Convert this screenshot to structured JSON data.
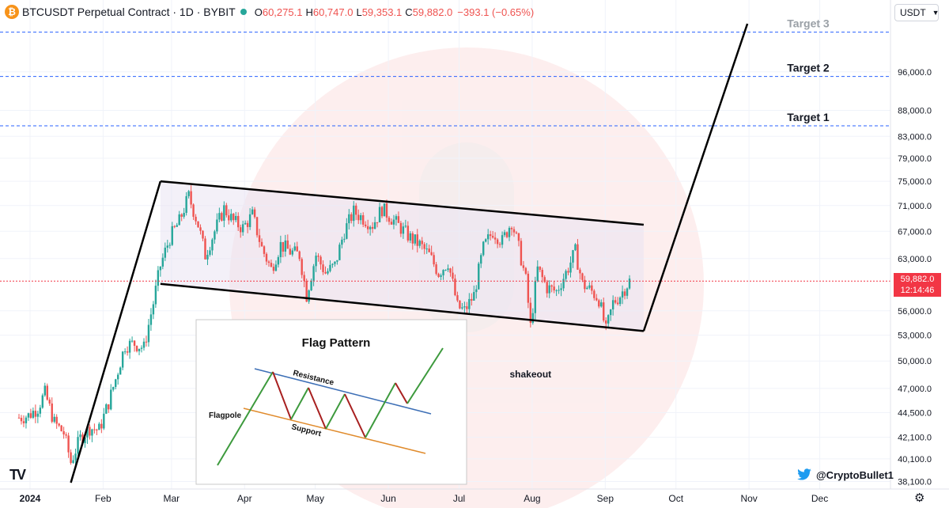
{
  "header": {
    "symbol": "BTCUSDT Perpetual Contract · 1D · BYBIT",
    "open_label": "O",
    "open": "60,275.1",
    "high_label": "H",
    "high": "60,747.0",
    "low_label": "L",
    "low": "59,353.1",
    "close_label": "C",
    "close": "59,882.0",
    "change": "−393.1 (−0.65%)"
  },
  "currency_button": "USDT",
  "logo_glyph": "₿",
  "tv_logo": "TV",
  "handle": "@CryptoBullet1",
  "current_price": {
    "value": "59,882.0",
    "countdown": "12:14:46"
  },
  "colors": {
    "up": "#26a69a",
    "down": "#ef5350",
    "target_line": "#2962ff",
    "accent": "#f23645"
  },
  "chart_data": {
    "type": "candlestick",
    "x_axis_labels": [
      "2024",
      "Feb",
      "Mar",
      "Apr",
      "May",
      "Jun",
      "Jul",
      "Aug",
      "Sep",
      "Oct",
      "Nov",
      "Dec"
    ],
    "y_axis_labels": [
      "38,100.0",
      "40,100.0",
      "42,100.0",
      "44,500.0",
      "47,000.0",
      "50,000.0",
      "53,000.0",
      "56,000.0",
      "63,000.0",
      "67,000.0",
      "71,000.0",
      "75,000.0",
      "79,000.0",
      "83,000.0",
      "88,000.0",
      "96,000.0"
    ],
    "ylim": [
      38000,
      107000
    ],
    "xlim": [
      "2024-01-01",
      "2024-12-31"
    ],
    "y_scale": "log",
    "candles_close": [
      [
        "2024-01-01",
        44000
      ],
      [
        "2024-01-05",
        44200
      ],
      [
        "2024-01-09",
        45000
      ],
      [
        "2024-01-12",
        46500
      ],
      [
        "2024-01-16",
        43500
      ],
      [
        "2024-01-20",
        42500
      ],
      [
        "2024-01-23",
        39800
      ],
      [
        "2024-01-27",
        42000
      ],
      [
        "2024-01-31",
        43000
      ],
      [
        "2024-02-04",
        42800
      ],
      [
        "2024-02-08",
        45500
      ],
      [
        "2024-02-11",
        48000
      ],
      [
        "2024-02-15",
        51800
      ],
      [
        "2024-02-19",
        52000
      ],
      [
        "2024-02-23",
        51500
      ],
      [
        "2024-02-27",
        57000
      ],
      [
        "2024-03-01",
        62000
      ],
      [
        "2024-03-05",
        66000
      ],
      [
        "2024-03-09",
        68500
      ],
      [
        "2024-03-13",
        72500
      ],
      [
        "2024-03-17",
        68000
      ],
      [
        "2024-03-20",
        63500
      ],
      [
        "2024-03-24",
        67000
      ],
      [
        "2024-03-28",
        70500
      ],
      [
        "2024-04-01",
        68500
      ],
      [
        "2024-04-05",
        67500
      ],
      [
        "2024-04-09",
        69500
      ],
      [
        "2024-04-13",
        64500
      ],
      [
        "2024-04-17",
        61500
      ],
      [
        "2024-04-21",
        65000
      ],
      [
        "2024-04-25",
        64000
      ],
      [
        "2024-04-29",
        63500
      ],
      [
        "2024-05-02",
        58000
      ],
      [
        "2024-05-06",
        63500
      ],
      [
        "2024-05-10",
        61000
      ],
      [
        "2024-05-14",
        62000
      ],
      [
        "2024-05-18",
        67000
      ],
      [
        "2024-05-22",
        70000
      ],
      [
        "2024-05-26",
        69000
      ],
      [
        "2024-05-30",
        68000
      ],
      [
        "2024-06-03",
        70500
      ],
      [
        "2024-06-07",
        69000
      ],
      [
        "2024-06-11",
        67500
      ],
      [
        "2024-06-15",
        66000
      ],
      [
        "2024-06-19",
        65000
      ],
      [
        "2024-06-23",
        63500
      ],
      [
        "2024-06-27",
        61000
      ],
      [
        "2024-07-01",
        62500
      ],
      [
        "2024-07-05",
        56500
      ],
      [
        "2024-07-08",
        56000
      ],
      [
        "2024-07-12",
        58000
      ],
      [
        "2024-07-16",
        64500
      ],
      [
        "2024-07-20",
        67000
      ],
      [
        "2024-07-24",
        65500
      ],
      [
        "2024-07-28",
        68500
      ],
      [
        "2024-07-31",
        64500
      ],
      [
        "2024-08-03",
        60000
      ],
      [
        "2024-08-05",
        54000
      ],
      [
        "2024-08-08",
        61500
      ],
      [
        "2024-08-12",
        59000
      ],
      [
        "2024-08-16",
        58500
      ],
      [
        "2024-08-20",
        61000
      ],
      [
        "2024-08-24",
        64000
      ],
      [
        "2024-08-27",
        59500
      ],
      [
        "2024-08-31",
        58500
      ],
      [
        "2024-09-03",
        57500
      ],
      [
        "2024-09-06",
        53500
      ],
      [
        "2024-09-09",
        57000
      ],
      [
        "2024-09-12",
        58000
      ],
      [
        "2024-09-16",
        59882
      ]
    ],
    "horizontal_levels": [
      {
        "label": "Target 3",
        "price_label": "105,000.0",
        "price": 105000
      },
      {
        "label": "Target 2",
        "price_label": "95,000.0",
        "price": 95000
      },
      {
        "label": "Target 1",
        "price_label": "85,000.0",
        "price": 85000
      }
    ],
    "drawn_lines": [
      {
        "from": [
          "2024-01-23",
          38000
        ],
        "to": [
          "2024-03-01",
          75000
        ]
      },
      {
        "from": [
          "2024-03-01",
          75000
        ],
        "to": [
          "2024-09-22",
          68000
        ]
      },
      {
        "from": [
          "2024-03-01",
          59500
        ],
        "to": [
          "2024-09-22",
          53500
        ]
      },
      {
        "from": [
          "2024-09-22",
          53500
        ],
        "to": [
          "2024-11-05",
          107000
        ]
      }
    ],
    "annotations": [
      {
        "text": "shakeout",
        "x": "2024-08-05",
        "y": 48200
      }
    ]
  },
  "inset": {
    "title": "Flag Pattern",
    "labels": [
      "Resistance",
      "Support",
      "Flagpole"
    ]
  }
}
